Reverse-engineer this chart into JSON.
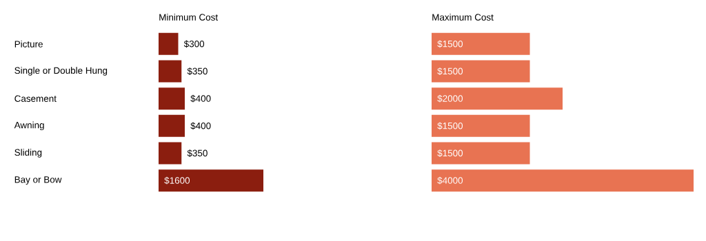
{
  "chart_data": [
    {
      "type": "bar",
      "orientation": "horizontal",
      "title": "Minimum Cost",
      "categories": [
        "Picture",
        "Single or Double Hung",
        "Casement",
        "Awning",
        "Sliding",
        "Bay or Bow"
      ],
      "values": [
        300,
        350,
        400,
        400,
        350,
        1600
      ],
      "value_labels": [
        "$300",
        "$350",
        "$400",
        "$400",
        "$350",
        "$1600"
      ],
      "color": "#8b1e0f",
      "tick_labels": "y"
    },
    {
      "type": "bar",
      "orientation": "horizontal",
      "title": "Maximum Cost",
      "categories": [
        null,
        null,
        null,
        null,
        null,
        null
      ],
      "values": [
        1500,
        1500,
        2000,
        1500,
        1500,
        4000
      ],
      "value_labels": [
        "$1500",
        "$1500",
        "$2000",
        "$1500",
        "$1500",
        "$4000"
      ],
      "color": "#e87352"
    }
  ]
}
